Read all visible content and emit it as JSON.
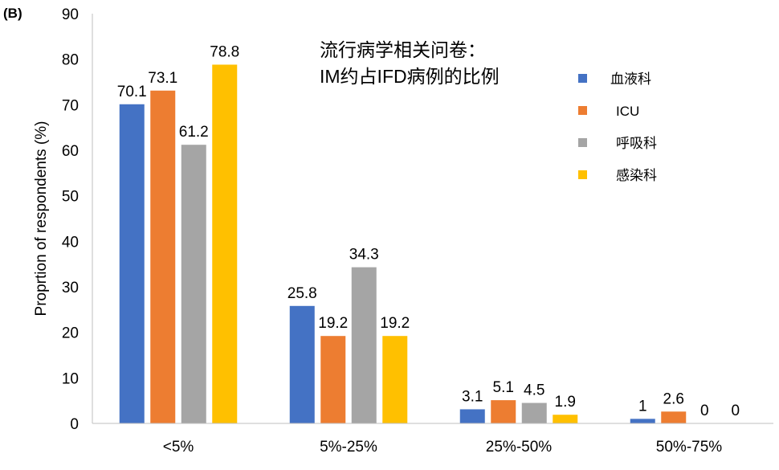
{
  "chart_data": {
    "type": "bar",
    "panel_label": "(B)",
    "title_lines": [
      "流行病学相关问卷：",
      "IM约占IFD病例的比例"
    ],
    "xlabel": "",
    "ylabel": "Proprtion of respondents (%)",
    "ylim": [
      0,
      90
    ],
    "yticks": [
      0,
      10,
      20,
      30,
      40,
      50,
      60,
      70,
      80,
      90
    ],
    "grid": false,
    "legend_position": "right",
    "categories": [
      "<5%",
      "5%-25%",
      "25%-50%",
      "50%-75%"
    ],
    "series": [
      {
        "name": "血液科",
        "color": "#4472C4",
        "values": [
          70.1,
          25.8,
          3.1,
          1
        ]
      },
      {
        "name": "ICU",
        "color": "#ED7D31",
        "values": [
          73.1,
          19.2,
          5.1,
          2.6
        ]
      },
      {
        "name": "呼吸科",
        "color": "#A5A5A5",
        "values": [
          61.2,
          34.3,
          4.5,
          0
        ]
      },
      {
        "name": "感染科",
        "color": "#FFC000",
        "values": [
          78.8,
          19.2,
          1.9,
          0
        ]
      }
    ]
  }
}
